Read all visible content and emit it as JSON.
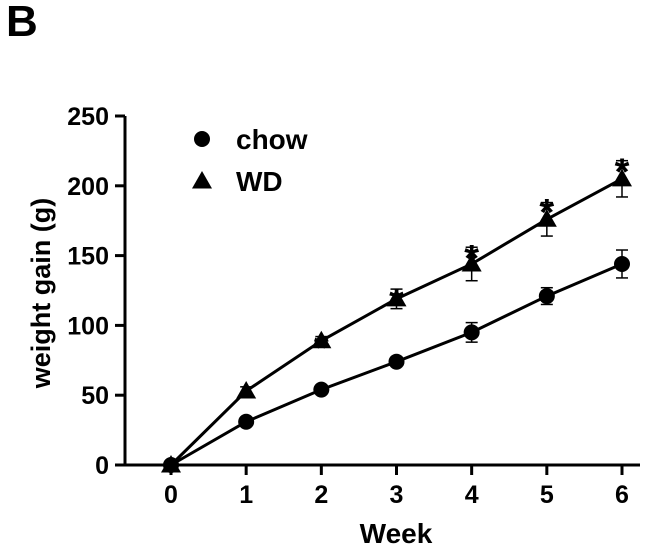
{
  "panel_label": "B",
  "chart_data": {
    "type": "line",
    "title": "",
    "xlabel": "Week",
    "ylabel": "weight gain (g)",
    "x": [
      0,
      1,
      2,
      3,
      4,
      5,
      6
    ],
    "xlim": [
      0,
      6
    ],
    "ylim": [
      0,
      250
    ],
    "x_ticks": [
      "0",
      "1",
      "2",
      "3",
      "4",
      "5",
      "6"
    ],
    "y_ticks": [
      "0",
      "50",
      "100",
      "150",
      "200",
      "250"
    ],
    "grid": false,
    "legend_position": "top-left",
    "series": [
      {
        "name": "chow",
        "marker": "circle",
        "color": "#000000",
        "values": [
          0,
          31,
          54,
          74,
          95,
          121,
          144
        ],
        "errors": [
          0,
          2,
          2,
          3,
          7,
          6,
          10
        ]
      },
      {
        "name": "WD",
        "marker": "triangle",
        "color": "#000000",
        "values": [
          0,
          53,
          89,
          119,
          144,
          176,
          205
        ],
        "errors": [
          0,
          3,
          3,
          7,
          12,
          12,
          13
        ]
      }
    ],
    "annotations": [
      {
        "x": 2,
        "y": 92,
        "text": "*"
      },
      {
        "x": 3,
        "y": 125,
        "text": "*"
      },
      {
        "x": 4,
        "y": 156,
        "text": "*"
      },
      {
        "x": 5,
        "y": 189,
        "text": "*"
      },
      {
        "x": 6,
        "y": 218,
        "text": "*"
      }
    ]
  }
}
